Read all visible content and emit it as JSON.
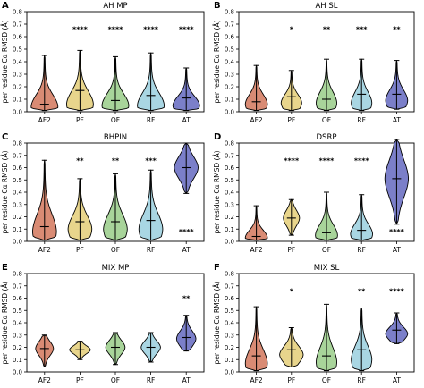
{
  "chart_data": [
    {
      "type": "violin",
      "panel": "A",
      "title": "AH MP",
      "ylabel": "per residue Cα RMSD (Å)",
      "ylim": [
        0,
        0.8
      ],
      "yticks": [
        "0.0",
        "0.1",
        "0.2",
        "0.3",
        "0.4",
        "0.5",
        "0.6",
        "0.7",
        "0.8"
      ],
      "categories": [
        "AF2",
        "PF",
        "OF",
        "RF",
        "AT"
      ],
      "colors": [
        "#d98b74",
        "#e8d58c",
        "#a8d49a",
        "#a9d6e3",
        "#7b7fc9"
      ],
      "series": [
        {
          "values": {
            "min": 0.01,
            "median": 0.06,
            "max": 0.45,
            "peak": 0.04,
            "width": 0.9
          }
        },
        {
          "values": {
            "min": 0.01,
            "median": 0.17,
            "max": 0.49,
            "peak": 0.06,
            "width": 0.9
          }
        },
        {
          "values": {
            "min": 0.01,
            "median": 0.09,
            "max": 0.44,
            "peak": 0.05,
            "width": 0.9
          }
        },
        {
          "values": {
            "min": 0.01,
            "median": 0.13,
            "max": 0.47,
            "peak": 0.05,
            "width": 0.9
          }
        },
        {
          "values": {
            "min": 0.01,
            "median": 0.11,
            "max": 0.35,
            "peak": 0.05,
            "width": 0.9
          }
        }
      ],
      "significance": [
        {
          "category": "PF",
          "label": "****",
          "y": 0.66
        },
        {
          "category": "OF",
          "label": "****",
          "y": 0.66
        },
        {
          "category": "RF",
          "label": "****",
          "y": 0.66
        },
        {
          "category": "AT",
          "label": "****",
          "y": 0.66
        }
      ]
    },
    {
      "type": "violin",
      "panel": "B",
      "title": "AH SL",
      "ylabel": "per residue Cα RMSD (Å)",
      "ylim": [
        0,
        0.8
      ],
      "yticks": [
        "0.0",
        "0.1",
        "0.2",
        "0.3",
        "0.4",
        "0.5",
        "0.6",
        "0.7",
        "0.8"
      ],
      "categories": [
        "AF2",
        "PF",
        "OF",
        "RF",
        "AT"
      ],
      "colors": [
        "#d98b74",
        "#e8d58c",
        "#a8d49a",
        "#a9d6e3",
        "#7b7fc9"
      ],
      "series": [
        {
          "values": {
            "min": 0.01,
            "median": 0.08,
            "max": 0.37,
            "peak": 0.06,
            "width": 0.75
          }
        },
        {
          "values": {
            "min": 0.01,
            "median": 0.12,
            "max": 0.33,
            "peak": 0.07,
            "width": 0.7
          }
        },
        {
          "values": {
            "min": 0.01,
            "median": 0.1,
            "max": 0.42,
            "peak": 0.07,
            "width": 0.7
          }
        },
        {
          "values": {
            "min": 0.01,
            "median": 0.14,
            "max": 0.42,
            "peak": 0.07,
            "width": 0.7
          }
        },
        {
          "values": {
            "min": 0.02,
            "median": 0.14,
            "max": 0.41,
            "peak": 0.09,
            "width": 0.75
          }
        }
      ],
      "significance": [
        {
          "category": "PF",
          "label": "*",
          "y": 0.66
        },
        {
          "category": "OF",
          "label": "**",
          "y": 0.66
        },
        {
          "category": "RF",
          "label": "***",
          "y": 0.66
        },
        {
          "category": "AT",
          "label": "**",
          "y": 0.66
        }
      ]
    },
    {
      "type": "violin",
      "panel": "C",
      "title": "BHPIN",
      "ylabel": "per residue Cα RMSD (Å)",
      "ylim": [
        0,
        0.8
      ],
      "yticks": [
        "0.0",
        "0.1",
        "0.2",
        "0.3",
        "0.4",
        "0.5",
        "0.6",
        "0.7",
        "0.8"
      ],
      "categories": [
        "AF2",
        "PF",
        "OF",
        "RF",
        "AT"
      ],
      "colors": [
        "#d98b74",
        "#e8d58c",
        "#a8d49a",
        "#a9d6e3",
        "#7b7fc9"
      ],
      "series": [
        {
          "values": {
            "min": 0.01,
            "median": 0.12,
            "max": 0.66,
            "peak": 0.08,
            "width": 0.8
          }
        },
        {
          "values": {
            "min": 0.01,
            "median": 0.16,
            "max": 0.51,
            "peak": 0.1,
            "width": 0.8
          }
        },
        {
          "values": {
            "min": 0.01,
            "median": 0.16,
            "max": 0.55,
            "peak": 0.1,
            "width": 0.8
          }
        },
        {
          "values": {
            "min": 0.01,
            "median": 0.17,
            "max": 0.58,
            "peak": 0.1,
            "width": 0.8
          }
        },
        {
          "values": {
            "min": 0.39,
            "median": 0.6,
            "max": 0.8,
            "peak": 0.6,
            "width": 0.8
          }
        }
      ],
      "significance": [
        {
          "category": "PF",
          "label": "**",
          "y": 0.66
        },
        {
          "category": "OF",
          "label": "**",
          "y": 0.66
        },
        {
          "category": "RF",
          "label": "***",
          "y": 0.66
        },
        {
          "category": "AT",
          "label": "****",
          "y": 0.08
        }
      ]
    },
    {
      "type": "violin",
      "panel": "D",
      "title": "DSRP",
      "ylabel": "per residue Cα RMSD (Å)",
      "ylim": [
        0,
        0.8
      ],
      "yticks": [
        "0.0",
        "0.1",
        "0.2",
        "0.3",
        "0.4",
        "0.5",
        "0.6",
        "0.7",
        "0.8"
      ],
      "categories": [
        "AF2",
        "PF",
        "OF",
        "RF",
        "AT"
      ],
      "colors": [
        "#d98b74",
        "#e8d58c",
        "#a8d49a",
        "#a9d6e3",
        "#7b7fc9"
      ],
      "series": [
        {
          "values": {
            "min": 0.01,
            "median": 0.04,
            "max": 0.29,
            "peak": 0.03,
            "width": 0.75
          }
        },
        {
          "values": {
            "min": 0.05,
            "median": 0.19,
            "max": 0.34,
            "peak": 0.19,
            "width": 0.55
          }
        },
        {
          "values": {
            "min": 0.01,
            "median": 0.07,
            "max": 0.4,
            "peak": 0.05,
            "width": 0.75
          }
        },
        {
          "values": {
            "min": 0.01,
            "median": 0.09,
            "max": 0.38,
            "peak": 0.06,
            "width": 0.75
          }
        },
        {
          "values": {
            "min": 0.14,
            "median": 0.51,
            "max": 0.83,
            "peak": 0.51,
            "width": 0.8
          }
        }
      ],
      "significance": [
        {
          "category": "PF",
          "label": "****",
          "y": 0.66
        },
        {
          "category": "OF",
          "label": "****",
          "y": 0.66
        },
        {
          "category": "RF",
          "label": "****",
          "y": 0.66
        },
        {
          "category": "AT",
          "label": "****",
          "y": 0.08
        }
      ]
    },
    {
      "type": "violin",
      "panel": "E",
      "title": "MIX MP",
      "ylabel": "per residue Cα RMSD (Å)",
      "ylim": [
        0,
        0.8
      ],
      "yticks": [
        "0.0",
        "0.1",
        "0.2",
        "0.3",
        "0.4",
        "0.5",
        "0.6",
        "0.7",
        "0.8"
      ],
      "categories": [
        "AF2",
        "PF",
        "OF",
        "RF",
        "AT"
      ],
      "colors": [
        "#d98b74",
        "#e8d58c",
        "#a8d49a",
        "#a9d6e3",
        "#7b7fc9"
      ],
      "series": [
        {
          "values": {
            "min": 0.04,
            "median": 0.19,
            "max": 0.3,
            "peak": 0.19,
            "width": 0.6
          }
        },
        {
          "values": {
            "min": 0.1,
            "median": 0.18,
            "max": 0.25,
            "peak": 0.18,
            "width": 0.7
          }
        },
        {
          "values": {
            "min": 0.06,
            "median": 0.2,
            "max": 0.32,
            "peak": 0.2,
            "width": 0.65
          }
        },
        {
          "values": {
            "min": 0.08,
            "median": 0.2,
            "max": 0.32,
            "peak": 0.2,
            "width": 0.65
          }
        },
        {
          "values": {
            "min": 0.17,
            "median": 0.28,
            "max": 0.46,
            "peak": 0.27,
            "width": 0.65
          }
        }
      ],
      "significance": [
        {
          "category": "AT",
          "label": "**",
          "y": 0.6
        }
      ]
    },
    {
      "type": "violin",
      "panel": "F",
      "title": "MIX SL",
      "ylabel": "per residue Cα RMSD (Å)",
      "ylim": [
        0,
        0.8
      ],
      "yticks": [
        "0.0",
        "0.1",
        "0.2",
        "0.3",
        "0.4",
        "0.5",
        "0.6",
        "0.7",
        "0.8"
      ],
      "categories": [
        "AF2",
        "PF",
        "OF",
        "RF",
        "AT"
      ],
      "colors": [
        "#d98b74",
        "#e8d58c",
        "#a8d49a",
        "#a9d6e3",
        "#7b7fc9"
      ],
      "series": [
        {
          "values": {
            "min": 0.01,
            "median": 0.13,
            "max": 0.53,
            "peak": 0.07,
            "width": 0.75
          }
        },
        {
          "values": {
            "min": 0.04,
            "median": 0.18,
            "max": 0.36,
            "peak": 0.14,
            "width": 0.8
          }
        },
        {
          "values": {
            "min": 0.01,
            "median": 0.13,
            "max": 0.55,
            "peak": 0.08,
            "width": 0.7
          }
        },
        {
          "values": {
            "min": 0.01,
            "median": 0.18,
            "max": 0.52,
            "peak": 0.1,
            "width": 0.7
          }
        },
        {
          "values": {
            "min": 0.23,
            "median": 0.34,
            "max": 0.48,
            "peak": 0.31,
            "width": 0.75
          }
        }
      ],
      "significance": [
        {
          "category": "PF",
          "label": "*",
          "y": 0.66
        },
        {
          "category": "RF",
          "label": "**",
          "y": 0.66
        },
        {
          "category": "AT",
          "label": "****",
          "y": 0.66
        }
      ]
    }
  ]
}
